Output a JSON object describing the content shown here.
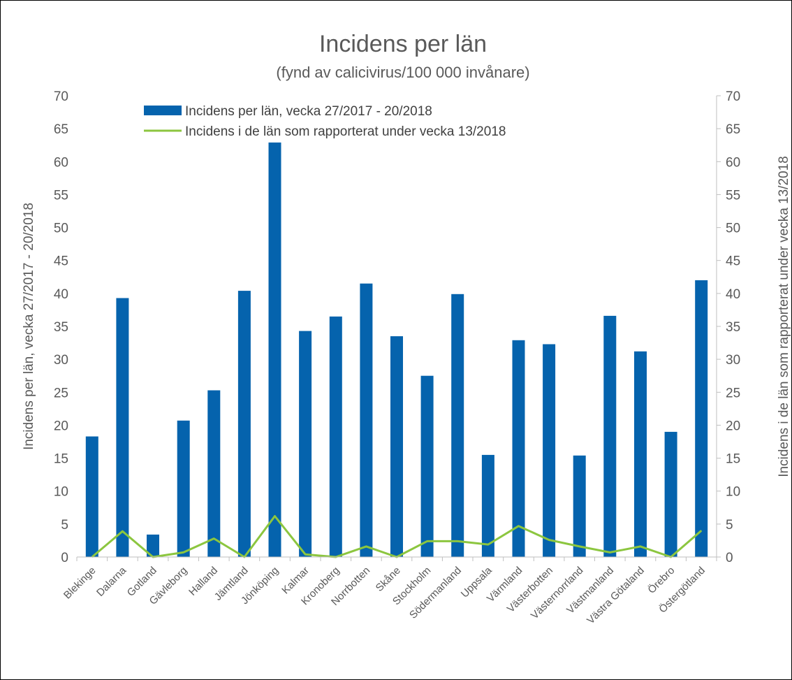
{
  "chart_data": {
    "type": "bar",
    "title": "Incidens per län",
    "subtitle": "(fynd av calicivirus/100 000 invånare)",
    "ylabel": "Incidens per län, vecka 27/2017 - 20/2018",
    "ylabel_right": "Incidens i de län som rapporterat under vecka 13/2018",
    "ylim": [
      0,
      70
    ],
    "ylim_right": [
      0,
      70
    ],
    "yticks": [
      "0",
      "5",
      "10",
      "15",
      "20",
      "25",
      "30",
      "35",
      "40",
      "45",
      "50",
      "55",
      "60",
      "65",
      "70"
    ],
    "grid": false,
    "legend_position": "top-left",
    "categories": [
      "Blekinge",
      "Dalarna",
      "Gotland",
      "Gävleborg",
      "Halland",
      "Jämtland",
      "Jönköping",
      "Kalmar",
      "Kronoberg",
      "Norrbotten",
      "Skåne",
      "Stockholm",
      "Södermanland",
      "Uppsala",
      "Värmland",
      "Västerbotten",
      "Västernorrland",
      "Västmanland",
      "Västra Götaland",
      "Örebro",
      "Östergötland"
    ],
    "series": [
      {
        "name": "Incidens per län, vecka 27/2017 - 20/2018",
        "type": "bar",
        "axis": "left",
        "color": "#0563AD",
        "values": [
          18.3,
          39.3,
          3.4,
          20.7,
          25.3,
          40.4,
          62.9,
          34.3,
          36.5,
          41.5,
          33.5,
          27.5,
          39.9,
          15.5,
          32.9,
          32.3,
          15.4,
          36.6,
          31.2,
          19.0,
          42.0
        ]
      },
      {
        "name": "Incidens i de län som rapporterat under vecka 13/2018",
        "type": "line",
        "axis": "right",
        "color": "#8CC63F",
        "values": [
          0,
          3.9,
          0,
          0.7,
          2.8,
          0,
          6.2,
          0.4,
          0,
          1.6,
          0,
          2.4,
          2.4,
          1.9,
          4.7,
          2.6,
          1.6,
          0.7,
          1.6,
          0,
          4.0
        ]
      }
    ]
  }
}
